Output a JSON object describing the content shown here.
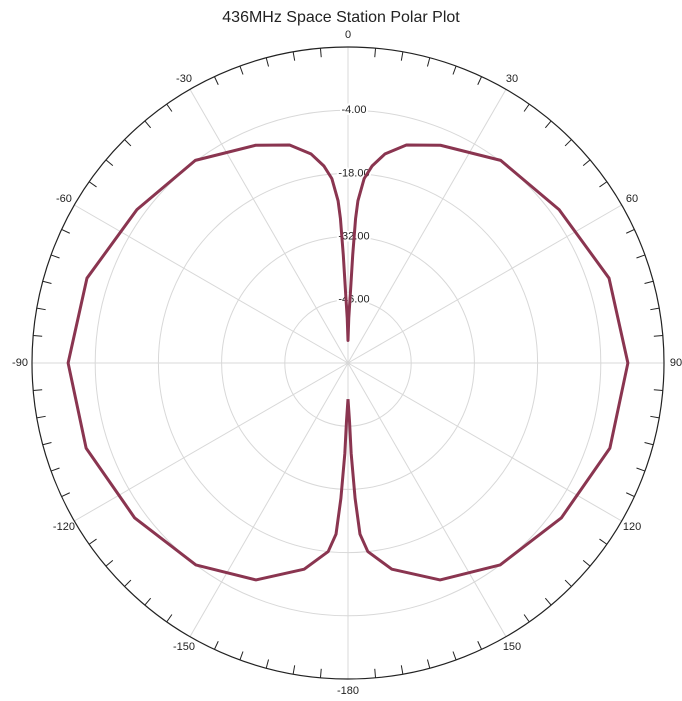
{
  "chart_data": {
    "type": "polar",
    "title": "436MHz Space Station Polar Plot",
    "theta": [
      -180,
      -178.5,
      -178,
      -177,
      -176,
      -174,
      -168,
      -157,
      -143,
      -126,
      -108,
      -90,
      -72,
      -54,
      -37,
      -23,
      -15,
      -10,
      -7,
      -5,
      -3.5,
      -3,
      -2.5,
      -2,
      -1,
      0,
      1,
      2,
      2.5,
      3,
      3.5,
      5,
      7,
      10,
      15,
      23,
      37,
      54,
      72,
      90,
      108,
      126,
      143,
      157,
      168,
      174,
      176,
      177,
      178,
      178.5,
      180
    ],
    "values": [
      -52,
      -47,
      -40,
      -30,
      -22,
      -18,
      -13.3,
      -7.8,
      -4,
      -1.6,
      1,
      2,
      0.8,
      -2.2,
      -3.8,
      -7.6,
      -10,
      -13,
      -16,
      -19,
      -24,
      -28,
      -36,
      -44,
      -50,
      -55,
      -50,
      -44,
      -36,
      -28,
      -24,
      -19,
      -16,
      -13,
      -10,
      -7.6,
      -3.8,
      -2.2,
      0.8,
      2,
      1,
      -1.6,
      -4,
      -7.8,
      -13.3,
      -18,
      -22,
      -30,
      -40,
      -47,
      -52
    ],
    "color": "#8a3550",
    "rlim": [
      -60,
      10
    ],
    "rticks": [
      {
        "value": -46,
        "label": "-46.00"
      },
      {
        "value": -32,
        "label": "-32.00"
      },
      {
        "value": -18,
        "label": "-18.00"
      },
      {
        "value": -4,
        "label": "-4.00"
      }
    ],
    "thetaticks": [
      0,
      30,
      60,
      90,
      120,
      150,
      -180,
      -150,
      -120,
      -90,
      -60,
      -30
    ],
    "grid": true
  }
}
